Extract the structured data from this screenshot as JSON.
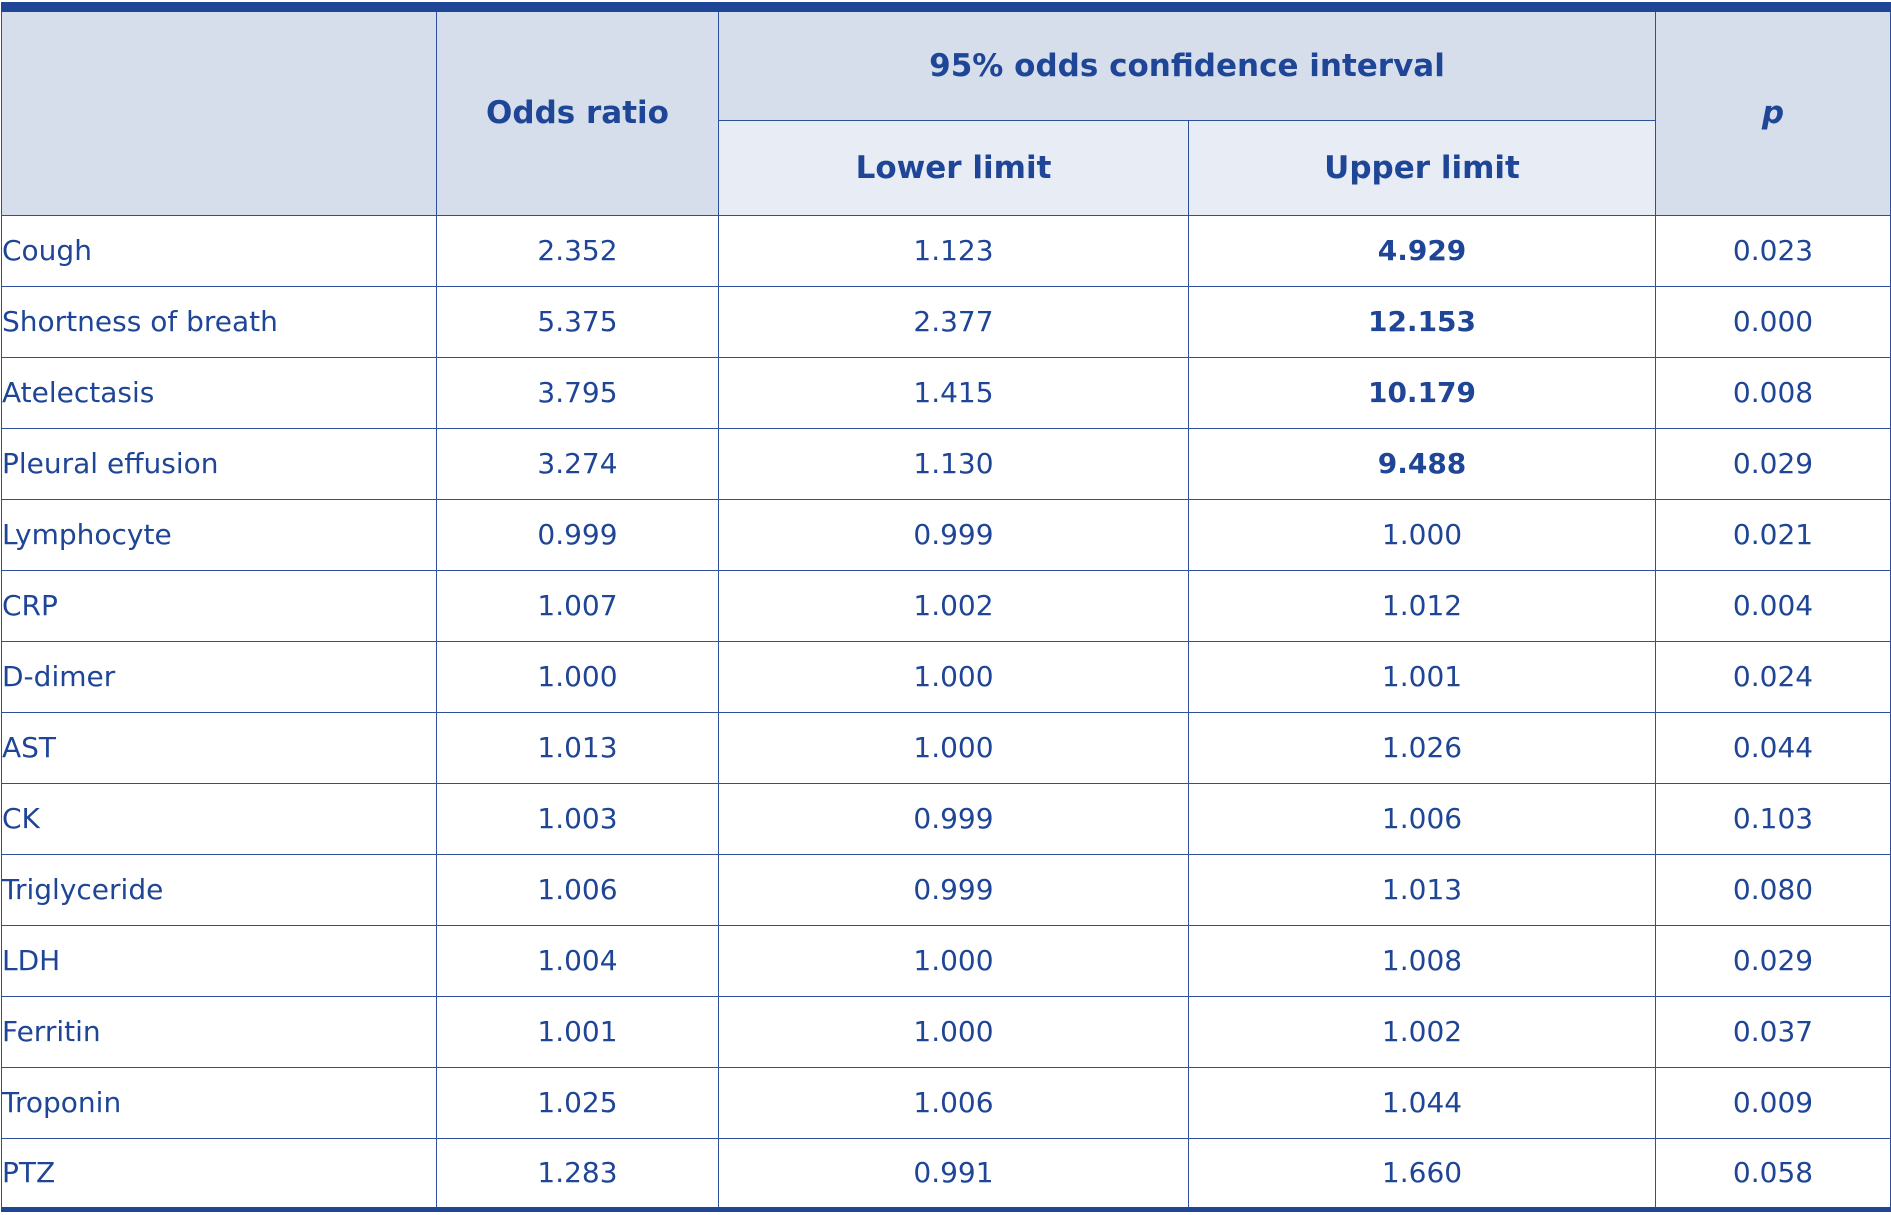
{
  "header": {
    "variable": "",
    "odds_ratio": "Odds ratio",
    "ci_group": "95% odds confidence interval",
    "lower_limit": "Lower limit",
    "upper_limit": "Upper limit",
    "p": "p"
  },
  "rows": [
    {
      "variable": "Cough",
      "odds_ratio": "2.352",
      "lower": "1.123",
      "upper": "4.929",
      "p": "0.023",
      "upper_bold": true
    },
    {
      "variable": "Shortness of breath",
      "odds_ratio": "5.375",
      "lower": "2.377",
      "upper": "12.153",
      "p": "0.000",
      "upper_bold": true
    },
    {
      "variable": "Atelectasis",
      "odds_ratio": "3.795",
      "lower": "1.415",
      "upper": "10.179",
      "p": "0.008",
      "upper_bold": true
    },
    {
      "variable": "Pleural effusion",
      "odds_ratio": "3.274",
      "lower": "1.130",
      "upper": "9.488",
      "p": "0.029",
      "upper_bold": true
    },
    {
      "variable": "Lymphocyte",
      "odds_ratio": "0.999",
      "lower": "0.999",
      "upper": "1.000",
      "p": "0.021",
      "upper_bold": false
    },
    {
      "variable": "CRP",
      "odds_ratio": "1.007",
      "lower": "1.002",
      "upper": "1.012",
      "p": "0.004",
      "upper_bold": false
    },
    {
      "variable": "D-dimer",
      "odds_ratio": "1.000",
      "lower": "1.000",
      "upper": "1.001",
      "p": "0.024",
      "upper_bold": false
    },
    {
      "variable": "AST",
      "odds_ratio": "1.013",
      "lower": "1.000",
      "upper": "1.026",
      "p": "0.044",
      "upper_bold": false
    },
    {
      "variable": "CK",
      "odds_ratio": "1.003",
      "lower": "0.999",
      "upper": "1.006",
      "p": "0.103",
      "upper_bold": false
    },
    {
      "variable": "Triglyceride",
      "odds_ratio": "1.006",
      "lower": "0.999",
      "upper": "1.013",
      "p": "0.080",
      "upper_bold": false
    },
    {
      "variable": "LDH",
      "odds_ratio": "1.004",
      "lower": "1.000",
      "upper": "1.008",
      "p": "0.029",
      "upper_bold": false
    },
    {
      "variable": "Ferritin",
      "odds_ratio": "1.001",
      "lower": "1.000",
      "upper": "1.002",
      "p": "0.037",
      "upper_bold": false
    },
    {
      "variable": "Troponin",
      "odds_ratio": "1.025",
      "lower": "1.006",
      "upper": "1.044",
      "p": "0.009",
      "upper_bold": false
    },
    {
      "variable": "PTZ",
      "odds_ratio": "1.283",
      "lower": "0.991",
      "upper": "1.660",
      "p": "0.058",
      "upper_bold": false
    }
  ],
  "colors": {
    "text": "#1f4597",
    "rule": "#1f4597",
    "header_dark": "#d6deeb",
    "header_light": "#e7ecf5"
  }
}
